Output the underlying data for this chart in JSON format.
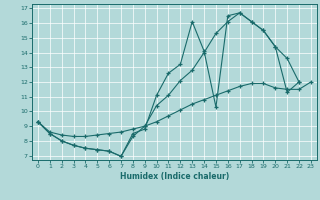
{
  "xlabel": "Humidex (Indice chaleur)",
  "xlim": [
    -0.5,
    23.5
  ],
  "ylim": [
    6.7,
    17.3
  ],
  "xticks": [
    0,
    1,
    2,
    3,
    4,
    5,
    6,
    7,
    8,
    9,
    10,
    11,
    12,
    13,
    14,
    15,
    16,
    17,
    18,
    19,
    20,
    21,
    22,
    23
  ],
  "yticks": [
    7,
    8,
    9,
    10,
    11,
    12,
    13,
    14,
    15,
    16,
    17
  ],
  "bg_color": "#b3d9d9",
  "grid_color": "#ffffff",
  "line_color": "#1a6b6b",
  "line1_x": [
    0,
    1,
    2,
    3,
    4,
    5,
    6,
    7,
    8,
    9,
    10,
    11,
    12,
    13,
    14,
    15,
    16,
    17,
    18,
    19,
    20,
    21,
    22
  ],
  "line1_y": [
    9.3,
    8.5,
    8.0,
    7.7,
    7.5,
    7.4,
    7.3,
    6.95,
    8.5,
    8.8,
    11.1,
    12.6,
    13.2,
    16.1,
    14.1,
    10.3,
    16.5,
    16.7,
    16.1,
    15.5,
    14.4,
    13.6,
    12.0
  ],
  "line2_x": [
    0,
    1,
    2,
    3,
    4,
    5,
    6,
    7,
    8,
    9,
    10,
    11,
    12,
    13,
    14,
    15,
    16,
    17,
    18,
    19,
    20,
    21,
    22
  ],
  "line2_y": [
    9.3,
    8.5,
    8.0,
    7.7,
    7.5,
    7.4,
    7.3,
    6.95,
    8.3,
    9.0,
    10.4,
    11.1,
    12.1,
    12.8,
    14.0,
    15.3,
    16.1,
    16.7,
    16.1,
    15.5,
    14.4,
    11.3,
    12.0
  ],
  "line3_x": [
    0,
    1,
    2,
    3,
    4,
    5,
    6,
    7,
    8,
    9,
    10,
    11,
    12,
    13,
    14,
    15,
    16,
    17,
    18,
    19,
    20,
    21,
    22,
    23
  ],
  "line3_y": [
    9.3,
    8.6,
    8.4,
    8.3,
    8.3,
    8.4,
    8.5,
    8.6,
    8.8,
    9.0,
    9.3,
    9.7,
    10.1,
    10.5,
    10.8,
    11.1,
    11.4,
    11.7,
    11.9,
    11.9,
    11.6,
    11.5,
    11.5,
    12.0
  ]
}
